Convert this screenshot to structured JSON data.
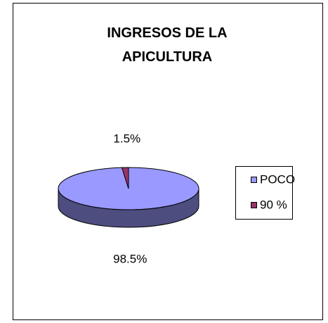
{
  "chart_data": {
    "type": "pie",
    "title": "INGRESOS DE LA APICULTURA",
    "categories": [
      "POCO",
      "90 %"
    ],
    "values": [
      98.5,
      1.5
    ],
    "value_labels": [
      "98.5%",
      "1.5%"
    ],
    "colors": [
      "#9999ff",
      "#993366"
    ],
    "legend": "right"
  }
}
